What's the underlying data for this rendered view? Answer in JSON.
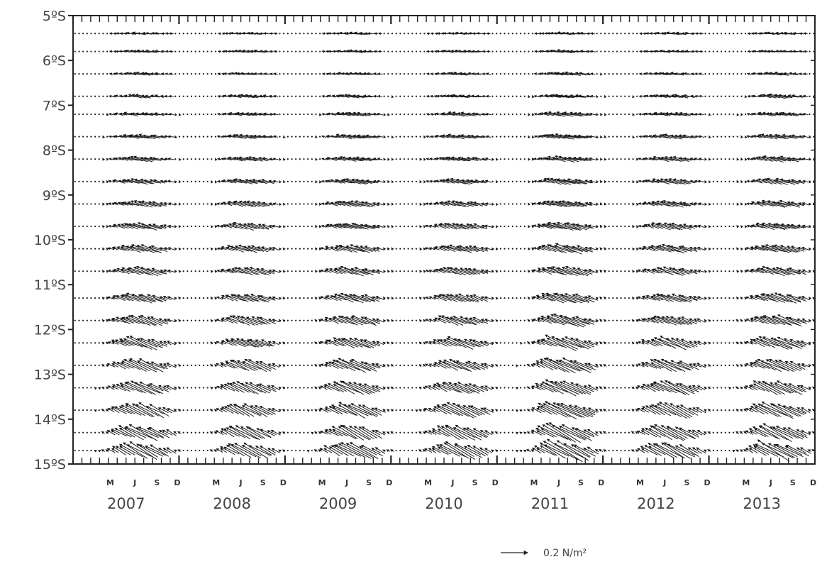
{
  "chart_data": {
    "type": "vector-field",
    "title": "",
    "xlabel": "",
    "ylabel": "",
    "latitude_ticks": [
      "5ºS",
      "6ºS",
      "7ºS",
      "8ºS",
      "9ºS",
      "10ºS",
      "11ºS",
      "12ºS",
      "13ºS",
      "14ºS",
      "15ºS"
    ],
    "lat_range": [
      -15,
      -5
    ],
    "lat_rows": [
      -5.4,
      -5.8,
      -6.3,
      -6.8,
      -7.2,
      -7.7,
      -8.2,
      -8.7,
      -9.2,
      -9.7,
      -10.2,
      -10.7,
      -11.3,
      -11.8,
      -12.3,
      -12.8,
      -13.3,
      -13.8,
      -14.3,
      -14.7
    ],
    "years": [
      "2007",
      "2008",
      "2009",
      "2010",
      "2011",
      "2012",
      "2013"
    ],
    "month_ticks": [
      "M",
      "J",
      "S",
      "D"
    ],
    "reference_vector": {
      "value": 0.2,
      "label": "0.2 N/m²",
      "unit": "N/m²"
    },
    "stress_scale_N_per_m2": [
      0.005,
      0.005,
      0.01,
      0.02,
      0.05,
      0.1,
      0.15,
      0.18,
      0.16,
      0.12,
      0.06,
      0.02
    ],
    "year_amplitude": [
      1.0,
      0.9,
      1.0,
      0.95,
      1.15,
      1.0,
      1.05
    ],
    "wind_direction": "south-easterly trade winds (vectors pointing north-west)"
  },
  "colors": {
    "axis": "#222222",
    "vector": "#1a1a1a",
    "text": "#444444"
  }
}
